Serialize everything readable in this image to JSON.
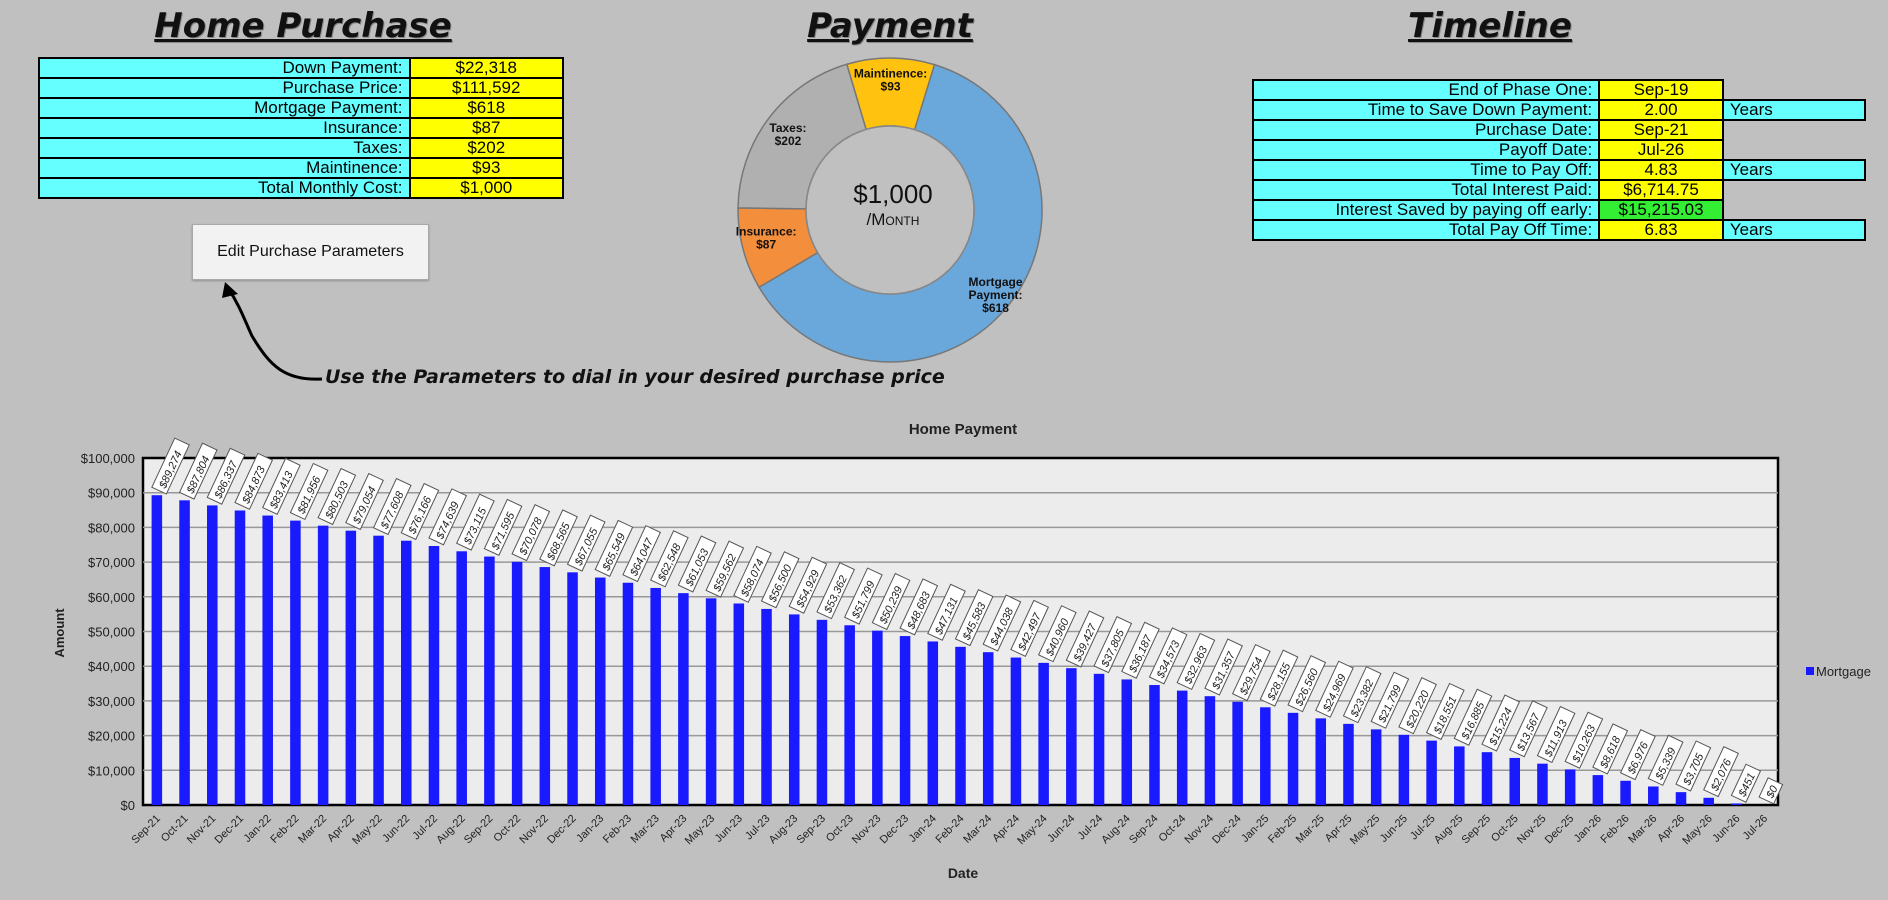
{
  "home_purchase": {
    "title": "Home Purchase",
    "rows": [
      {
        "label": "Down Payment:",
        "value": "$22,318"
      },
      {
        "label": "Purchase Price:",
        "value": "$111,592"
      },
      {
        "label": "Mortgage Payment:",
        "value": "$618"
      },
      {
        "label": "Insurance:",
        "value": "$87"
      },
      {
        "label": "Taxes:",
        "value": "$202"
      },
      {
        "label": "Maintinence:",
        "value": "$93"
      },
      {
        "label": "Total Monthly Cost:",
        "value": "$1,000"
      }
    ],
    "edit_button": "Edit Purchase Parameters",
    "hint": "Use the Parameters to dial in your desired purchase price"
  },
  "payment": {
    "title": "Payment",
    "center_value": "$1,000",
    "center_unit": "/Month",
    "colors": {
      "mortgage": "#6aa8dc",
      "insurance": "#f28e3c",
      "taxes": "#b0b0b0",
      "maintenance": "#ffc20e"
    },
    "slices": [
      {
        "name": "Mortgage Payment:",
        "value": 618,
        "label": "$618"
      },
      {
        "name": "Insurance:",
        "value": 87,
        "label": "$87"
      },
      {
        "name": "Taxes:",
        "value": 202,
        "label": "$202"
      },
      {
        "name": "Maintinence:",
        "value": 93,
        "label": "$93"
      }
    ]
  },
  "timeline": {
    "title": "Timeline",
    "rows": [
      {
        "label": "End of Phase One:",
        "value": "Sep-19",
        "unit": ""
      },
      {
        "label": "Time to Save Down Payment:",
        "value": "2.00",
        "unit": "Years"
      },
      {
        "label": "Purchase Date:",
        "value": "Sep-21",
        "unit": ""
      },
      {
        "label": "Payoff Date:",
        "value": "Jul-26",
        "unit": ""
      },
      {
        "label": "Time to Pay Off:",
        "value": "4.83",
        "unit": "Years"
      },
      {
        "label": "Total Interest Paid:",
        "value": "$6,714.75",
        "unit": ""
      },
      {
        "label": "Interest Saved by paying off early:",
        "value": "$15,215.03",
        "unit": "",
        "highlight": true
      },
      {
        "label": "Total Pay Off Time:",
        "value": "6.83",
        "unit": "Years"
      }
    ]
  },
  "chart_data": {
    "type": "bar",
    "title": "Home Payment",
    "xlabel": "Date",
    "ylabel": "Amount",
    "ylim": [
      0,
      100000
    ],
    "yticks": [
      "$0",
      "$10,000",
      "$20,000",
      "$30,000",
      "$40,000",
      "$50,000",
      "$60,000",
      "$70,000",
      "$80,000",
      "$90,000",
      "$100,000"
    ],
    "grid": true,
    "legend_position": "right",
    "bar_color": "#1a1aff",
    "series": [
      {
        "name": "Mortgage"
      }
    ],
    "categories": [
      "Sep-21",
      "Oct-21",
      "Nov-21",
      "Dec-21",
      "Jan-22",
      "Feb-22",
      "Mar-22",
      "Apr-22",
      "May-22",
      "Jun-22",
      "Jul-22",
      "Aug-22",
      "Sep-22",
      "Oct-22",
      "Nov-22",
      "Dec-22",
      "Jan-23",
      "Feb-23",
      "Mar-23",
      "Apr-23",
      "May-23",
      "Jun-23",
      "Jul-23",
      "Aug-23",
      "Sep-23",
      "Oct-23",
      "Nov-23",
      "Dec-23",
      "Jan-24",
      "Feb-24",
      "Mar-24",
      "Apr-24",
      "May-24",
      "Jun-24",
      "Jul-24",
      "Aug-24",
      "Sep-24",
      "Oct-24",
      "Nov-24",
      "Dec-24",
      "Jan-25",
      "Feb-25",
      "Mar-25",
      "Apr-25",
      "May-25",
      "Jun-25",
      "Jul-25",
      "Aug-25",
      "Sep-25",
      "Oct-25",
      "Nov-25",
      "Dec-25",
      "Jan-26",
      "Feb-26",
      "Mar-26",
      "Apr-26",
      "May-26",
      "Jun-26",
      "Jul-26"
    ],
    "values": [
      89274,
      87804,
      86337,
      84873,
      83413,
      81956,
      80503,
      79054,
      77608,
      76166,
      74639,
      73115,
      71595,
      70078,
      68565,
      67055,
      65549,
      64047,
      62548,
      61053,
      59562,
      58074,
      56500,
      54929,
      53362,
      51799,
      50239,
      48683,
      47131,
      45583,
      44038,
      42497,
      40960,
      39427,
      37805,
      36187,
      34573,
      32963,
      31357,
      29754,
      28155,
      26560,
      24969,
      23382,
      21799,
      20220,
      18551,
      16885,
      15224,
      13567,
      11913,
      10263,
      8618,
      6976,
      5339,
      3705,
      2076,
      451,
      0
    ],
    "labels": [
      "$89,274",
      "$87,804",
      "$86,337",
      "$84,873",
      "$83,413",
      "$81,956",
      "$80,503",
      "$79,054",
      "$77,608",
      "$76,166",
      "$74,639",
      "$73,115",
      "$71,595",
      "$70,078",
      "$68,565",
      "$67,055",
      "$65,549",
      "$64,047",
      "$62,548",
      "$61,053",
      "$59,562",
      "$58,074",
      "$56,500",
      "$54,929",
      "$53,362",
      "$51,799",
      "$50,239",
      "$48,683",
      "$47,131",
      "$45,583",
      "$44,038",
      "$42,497",
      "$40,960",
      "$39,427",
      "$37,805",
      "$36,187",
      "$34,573",
      "$32,963",
      "$31,357",
      "$29,754",
      "$28,155",
      "$26,560",
      "$24,969",
      "$23,382",
      "$21,799",
      "$20,220",
      "$18,551",
      "$16,885",
      "$15,224",
      "$13,567",
      "$11,913",
      "$10,263",
      "$8,618",
      "$6,976",
      "$5,339",
      "$3,705",
      "$2,076",
      "$451",
      "$0"
    ]
  }
}
